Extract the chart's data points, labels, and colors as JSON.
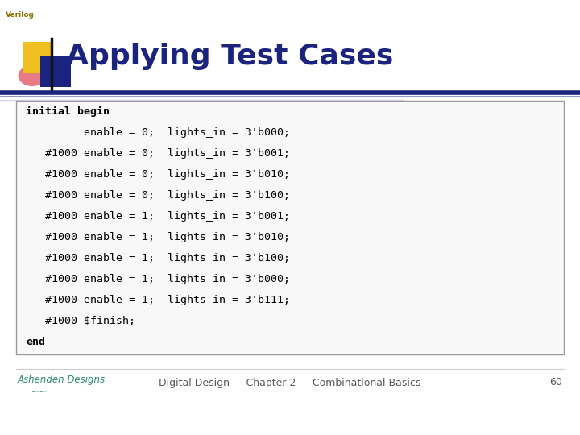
{
  "title": "Applying Test Cases",
  "verilog_label": "Verilog",
  "title_color": "#1a237e",
  "title_fontsize": 26,
  "bg_color": "#ffffff",
  "code_lines": [
    {
      "text": "initial begin",
      "bold": true,
      "extra_indent": false
    },
    {
      "text": "         enable = 0;  lights_in = 3'b000;",
      "bold": false,
      "extra_indent": false
    },
    {
      "text": "   #1000 enable = 0;  lights_in = 3'b001;",
      "bold": false,
      "extra_indent": false
    },
    {
      "text": "   #1000 enable = 0;  lights_in = 3'b010;",
      "bold": false,
      "extra_indent": false
    },
    {
      "text": "   #1000 enable = 0;  lights_in = 3'b100;",
      "bold": false,
      "extra_indent": false
    },
    {
      "text": "   #1000 enable = 1;  lights_in = 3'b001;",
      "bold": false,
      "extra_indent": false
    },
    {
      "text": "   #1000 enable = 1;  lights_in = 3'b010;",
      "bold": false,
      "extra_indent": false
    },
    {
      "text": "   #1000 enable = 1;  lights_in = 3'b100;",
      "bold": false,
      "extra_indent": false
    },
    {
      "text": "   #1000 enable = 1;  lights_in = 3'b000;",
      "bold": false,
      "extra_indent": false
    },
    {
      "text": "   #1000 enable = 1;  lights_in = 3'b111;",
      "bold": false,
      "extra_indent": false
    },
    {
      "text": "   #1000 $finish;",
      "bold": false,
      "extra_indent": false
    },
    {
      "text": "end",
      "bold": true,
      "extra_indent": false
    }
  ],
  "code_font_size": 9.5,
  "code_color": "#000000",
  "box_bg": "#f8f8f8",
  "box_edge_color": "#999999",
  "footer_text": "Digital Design — Chapter 2 — Combinational Basics",
  "footer_page": "60",
  "footer_color": "#555555",
  "footer_fontsize": 9,
  "ashenden_color": "#2e8b6e",
  "logo_yellow": "#f0c020",
  "logo_blue": "#1a237e",
  "logo_red": "#e05060",
  "logo_darkblue": "#1a237e",
  "divider_color": "#1a237e",
  "header_bg": "#e8e8f0",
  "verilog_color": "#8B7500"
}
